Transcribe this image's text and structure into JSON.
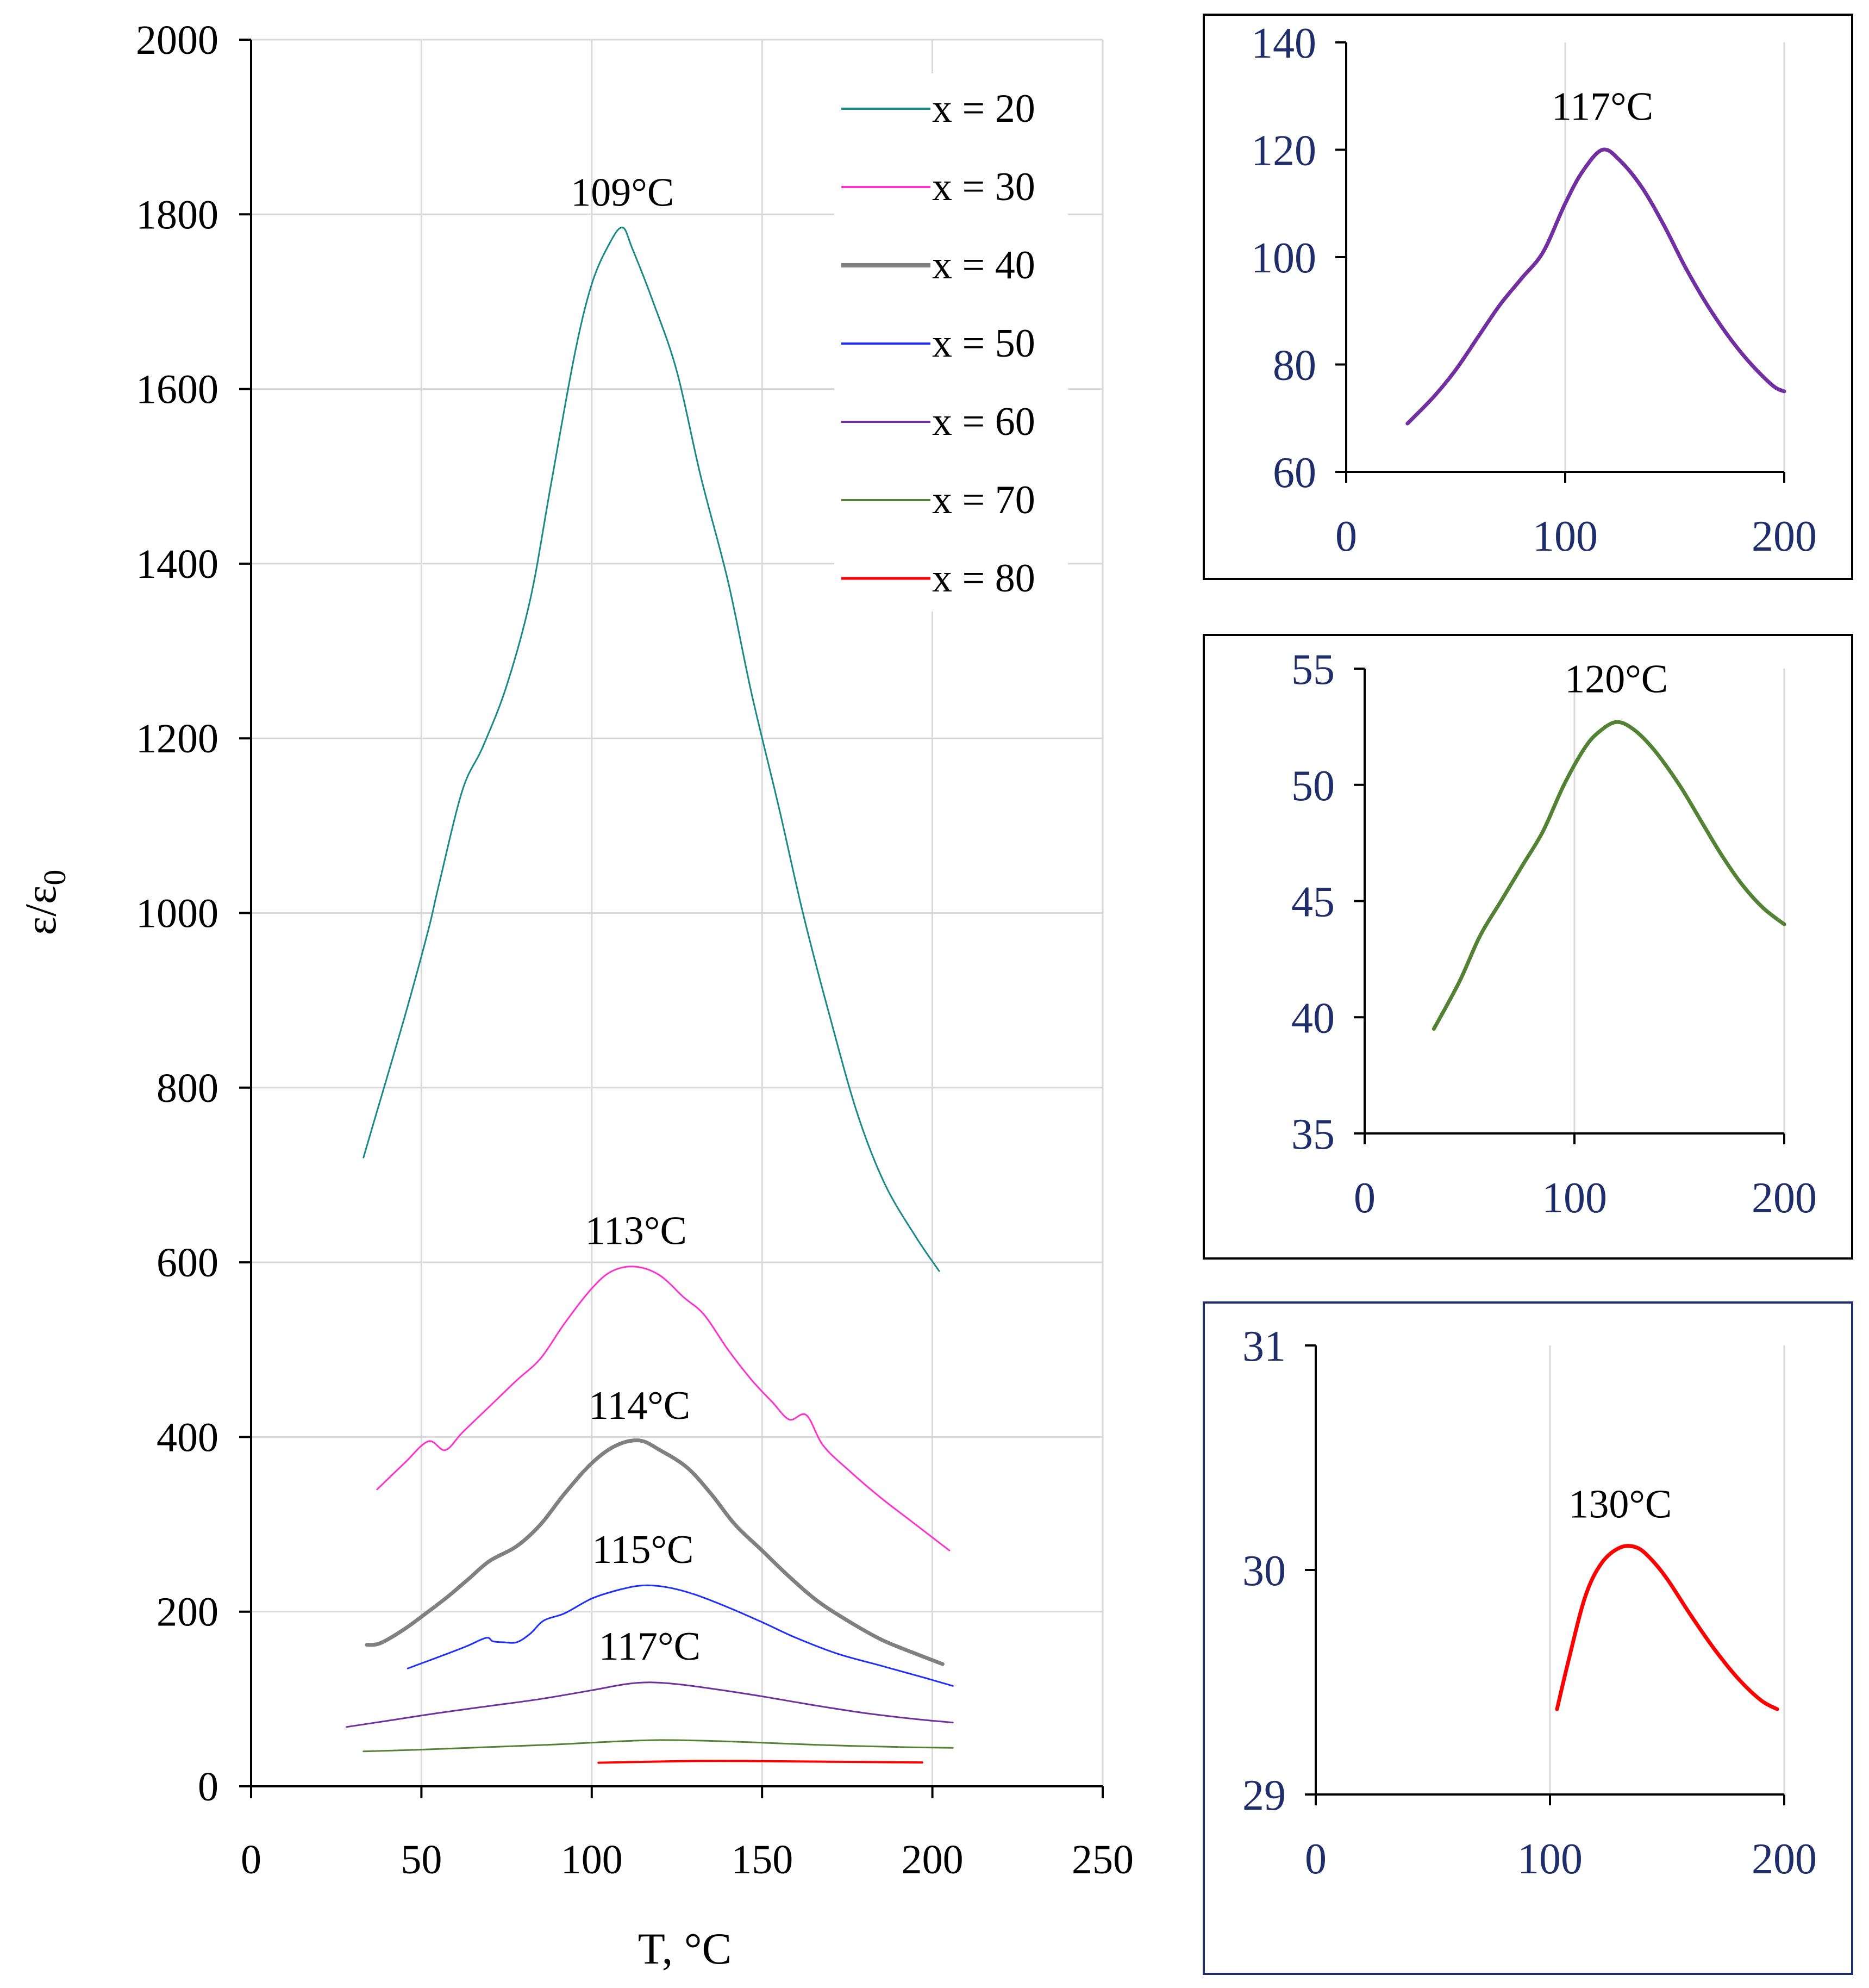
{
  "chart_data": [
    {
      "type": "line",
      "xlabel": "T, °C",
      "ylabel": "ε/ε0",
      "xlim": [
        0,
        250
      ],
      "ylim": [
        0,
        2000
      ],
      "x_ticks": [
        "0",
        "50",
        "100",
        "150",
        "200",
        "250"
      ],
      "y_ticks": [
        "0",
        "200",
        "400",
        "600",
        "800",
        "1000",
        "1200",
        "1400",
        "1600",
        "1800",
        "2000"
      ],
      "legend_position": "top-right",
      "series": [
        {
          "name": "x = 20",
          "color": "#1a8a88",
          "width": 3,
          "x": [
            33,
            36,
            45,
            52,
            55,
            62,
            68,
            75,
            82,
            88,
            95,
            100,
            105,
            109,
            112,
            118,
            125,
            132,
            140,
            147,
            155,
            162,
            170,
            178,
            186,
            195,
            202
          ],
          "y": [
            720,
            760,
            880,
            980,
            1030,
            1140,
            1190,
            1260,
            1360,
            1490,
            1640,
            1720,
            1765,
            1785,
            1760,
            1700,
            1620,
            1500,
            1380,
            1250,
            1120,
            1000,
            880,
            770,
            690,
            630,
            590
          ]
        },
        {
          "name": "x = 30",
          "color": "#ff33cc",
          "width": 3,
          "x": [
            37,
            45,
            52,
            57,
            62,
            70,
            78,
            85,
            92,
            100,
            106,
            113,
            120,
            127,
            133,
            140,
            147,
            153,
            158,
            163,
            168,
            176,
            185,
            195,
            205
          ],
          "y": [
            340,
            370,
            395,
            385,
            405,
            435,
            465,
            490,
            530,
            570,
            590,
            595,
            585,
            560,
            540,
            500,
            465,
            440,
            420,
            425,
            390,
            360,
            330,
            300,
            270
          ]
        },
        {
          "name": "x = 40",
          "color": "#808080",
          "width": 7,
          "x": [
            34,
            38,
            45,
            52,
            58,
            64,
            70,
            78,
            85,
            92,
            100,
            107,
            114,
            120,
            128,
            135,
            142,
            150,
            158,
            166,
            175,
            185,
            195,
            203
          ],
          "y": [
            162,
            164,
            180,
            200,
            218,
            238,
            258,
            275,
            300,
            335,
            370,
            390,
            396,
            385,
            365,
            335,
            300,
            270,
            240,
            213,
            190,
            168,
            152,
            140
          ]
        },
        {
          "name": "x = 50",
          "color": "#1f2fff",
          "width": 3,
          "x": [
            46,
            55,
            63,
            69,
            71,
            74,
            78,
            82,
            86,
            92,
            100,
            108,
            115,
            122,
            130,
            140,
            150,
            160,
            172,
            185,
            198,
            206
          ],
          "y": [
            135,
            148,
            160,
            170,
            166,
            165,
            165,
            175,
            190,
            198,
            215,
            225,
            230,
            228,
            220,
            205,
            188,
            170,
            152,
            138,
            124,
            115
          ]
        },
        {
          "name": "x = 60",
          "color": "#7030a0",
          "width": 3,
          "x": [
            28,
            40,
            55,
            70,
            85,
            100,
            110,
            117,
            125,
            135,
            150,
            165,
            180,
            195,
            206
          ],
          "y": [
            68,
            75,
            84,
            92,
            100,
            110,
            117,
            119,
            117,
            112,
            103,
            93,
            84,
            77,
            73
          ]
        },
        {
          "name": "x = 70",
          "color": "#548235",
          "width": 3,
          "x": [
            33,
            50,
            70,
            90,
            105,
            120,
            135,
            150,
            170,
            190,
            206
          ],
          "y": [
            40,
            42,
            45,
            48,
            51,
            53,
            52,
            50,
            47,
            45,
            44
          ]
        },
        {
          "name": "x = 80",
          "color": "#ff0000",
          "width": 4,
          "x": [
            102,
            115,
            130,
            145,
            160,
            175,
            190,
            197
          ],
          "y": [
            27,
            28,
            29,
            29,
            28.5,
            28,
            27.5,
            27.3
          ]
        }
      ],
      "annotations": [
        {
          "text": "109°C",
          "x": 109,
          "y": 1785
        },
        {
          "text": "113°C",
          "x": 113,
          "y": 596
        },
        {
          "text": "114°C",
          "x": 114,
          "y": 396
        },
        {
          "text": "115°C",
          "x": 115,
          "y": 231
        },
        {
          "text": "117°C",
          "x": 117,
          "y": 120
        }
      ]
    },
    {
      "type": "line",
      "xlim": [
        0,
        200
      ],
      "ylim": [
        60,
        140
      ],
      "x_ticks": [
        "0",
        "100",
        "200"
      ],
      "y_ticks": [
        "60",
        "80",
        "100",
        "120",
        "140"
      ],
      "series": [
        {
          "name": "x = 60",
          "color": "#7030a0",
          "x": [
            28,
            40,
            50,
            60,
            70,
            80,
            90,
            100,
            108,
            117,
            125,
            135,
            145,
            155,
            165,
            175,
            185,
            195,
            200
          ],
          "y": [
            69,
            74,
            79,
            85,
            91,
            96,
            101,
            110,
            116,
            120,
            118,
            113,
            106,
            98,
            91,
            85,
            80,
            76,
            75
          ]
        }
      ],
      "annotations": [
        {
          "text": "117°C",
          "x": 117,
          "y": 120
        }
      ]
    },
    {
      "type": "line",
      "xlim": [
        0,
        200
      ],
      "ylim": [
        35,
        55
      ],
      "x_ticks": [
        "0",
        "100",
        "200"
      ],
      "y_ticks": [
        "35",
        "40",
        "45",
        "50",
        "55"
      ],
      "series": [
        {
          "name": "x = 70",
          "color": "#548235",
          "x": [
            33,
            45,
            55,
            65,
            75,
            85,
            95,
            105,
            112,
            120,
            128,
            138,
            150,
            160,
            170,
            180,
            190,
            200
          ],
          "y": [
            39.5,
            41.5,
            43.5,
            45,
            46.5,
            48,
            50,
            51.6,
            52.3,
            52.7,
            52.4,
            51.5,
            50,
            48.5,
            47,
            45.7,
            44.7,
            44
          ]
        }
      ],
      "annotations": [
        {
          "text": "120°C",
          "x": 120,
          "y": 52.7
        }
      ]
    },
    {
      "type": "line",
      "xlim": [
        0,
        200
      ],
      "ylim": [
        29,
        31
      ],
      "x_ticks": [
        "0",
        "100",
        "200"
      ],
      "y_ticks": [
        "29",
        "30",
        "31"
      ],
      "series": [
        {
          "name": "x = 80",
          "color": "#ff0000",
          "x": [
            103,
            108,
            115,
            122,
            130,
            137,
            143,
            150,
            160,
            170,
            180,
            190,
            197
          ],
          "y": [
            29.38,
            29.6,
            29.88,
            30.03,
            30.1,
            30.1,
            30.05,
            29.96,
            29.8,
            29.65,
            29.52,
            29.42,
            29.38
          ]
        }
      ],
      "annotations": [
        {
          "text": "130°C",
          "x": 130,
          "y": 30.1
        }
      ]
    }
  ]
}
